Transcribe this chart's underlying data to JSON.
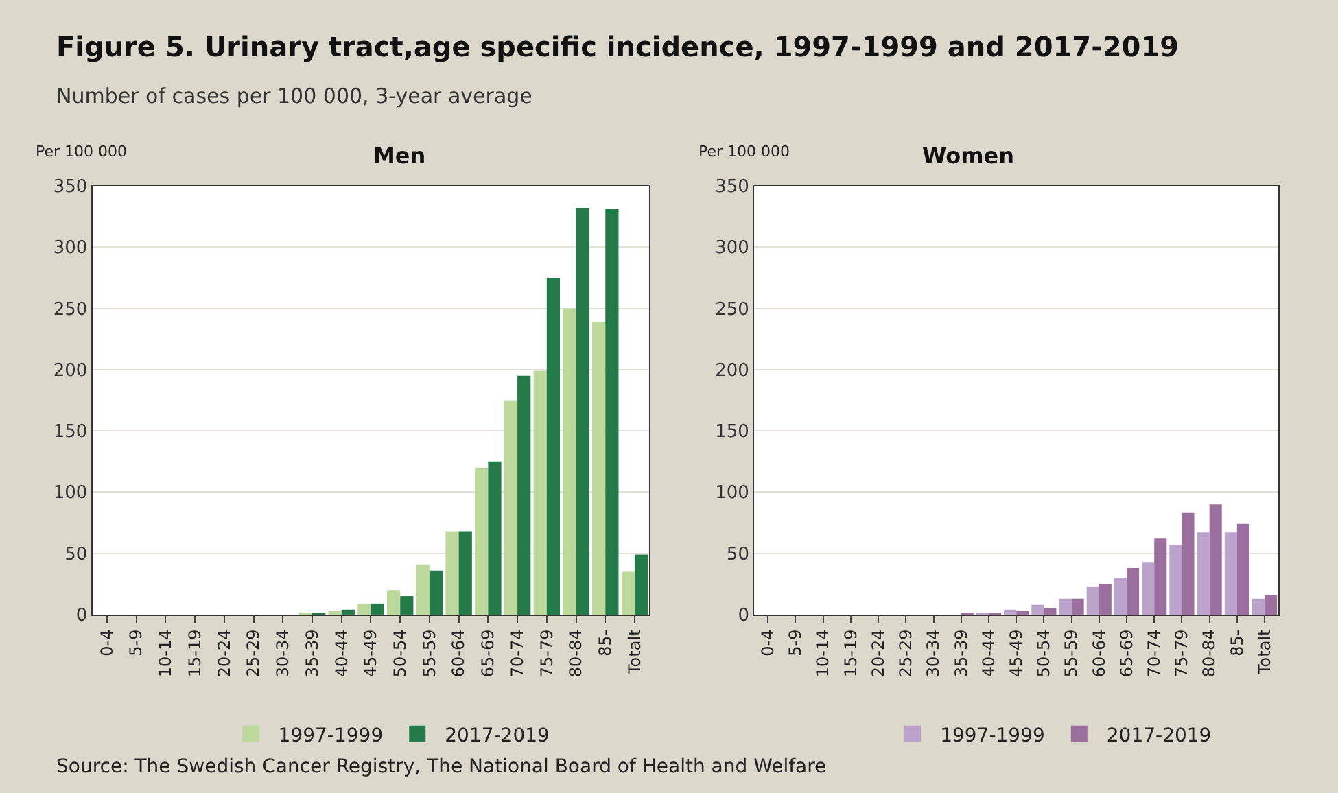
{
  "chart_data": [
    {
      "type": "bar",
      "title": "Men",
      "ylabel": "Per 100 000",
      "annotations": [
        "Figure 5. Urinary tract,age specific incidence, 1997-1999 and 2017-2019",
        "Number of cases per 100 000, 3-year average",
        "Source: The Swedish Cancer Registry, The National Board of Health and Welfare"
      ],
      "categories": [
        "0-4",
        "5-9",
        "10-14",
        "15-19",
        "20-24",
        "25-29",
        "30-34",
        "35-39",
        "40-44",
        "45-49",
        "50-54",
        "55-59",
        "60-64",
        "65-69",
        "70-74",
        "75-79",
        "80-84",
        "85-",
        "Totalt"
      ],
      "series": [
        {
          "name": "1997-1999",
          "color": "#bdd89b",
          "values": [
            0,
            0,
            0,
            0,
            0,
            0,
            0,
            1,
            3,
            9,
            20,
            41,
            68,
            120,
            175,
            199,
            250,
            239,
            35
          ]
        },
        {
          "name": "2017-2019",
          "color": "#237a48",
          "values": [
            0,
            0,
            0,
            0,
            0,
            0,
            0,
            1,
            4,
            9,
            15,
            36,
            68,
            125,
            195,
            275,
            332,
            331,
            49
          ]
        }
      ],
      "ylim": [
        0,
        350
      ],
      "yticks": [
        0,
        50,
        100,
        150,
        200,
        250,
        300,
        350
      ],
      "grid": "y",
      "legend": "bottom"
    },
    {
      "type": "bar",
      "title": "Women",
      "ylabel": "Per 100 000",
      "categories": [
        "0-4",
        "5-9",
        "10-14",
        "15-19",
        "20-24",
        "25-29",
        "30-34",
        "35-39",
        "40-44",
        "45-49",
        "50-54",
        "55-59",
        "60-64",
        "65-69",
        "70-74",
        "75-79",
        "80-84",
        "85-",
        "Totalt"
      ],
      "series": [
        {
          "name": "1997-1999",
          "color": "#bca3cb",
          "values": [
            0,
            0,
            0,
            0,
            0,
            0,
            0,
            0,
            1,
            4,
            8,
            13,
            23,
            30,
            43,
            57,
            67,
            67,
            13
          ]
        },
        {
          "name": "2017-2019",
          "color": "#9a6e9d",
          "values": [
            0,
            0,
            0,
            0,
            0,
            0,
            0,
            1,
            1,
            3,
            5,
            13,
            25,
            38,
            62,
            83,
            90,
            74,
            16
          ]
        }
      ],
      "ylim": [
        0,
        350
      ],
      "yticks": [
        0,
        50,
        100,
        150,
        200,
        250,
        300,
        350
      ],
      "grid": "y",
      "legend": "bottom"
    }
  ]
}
